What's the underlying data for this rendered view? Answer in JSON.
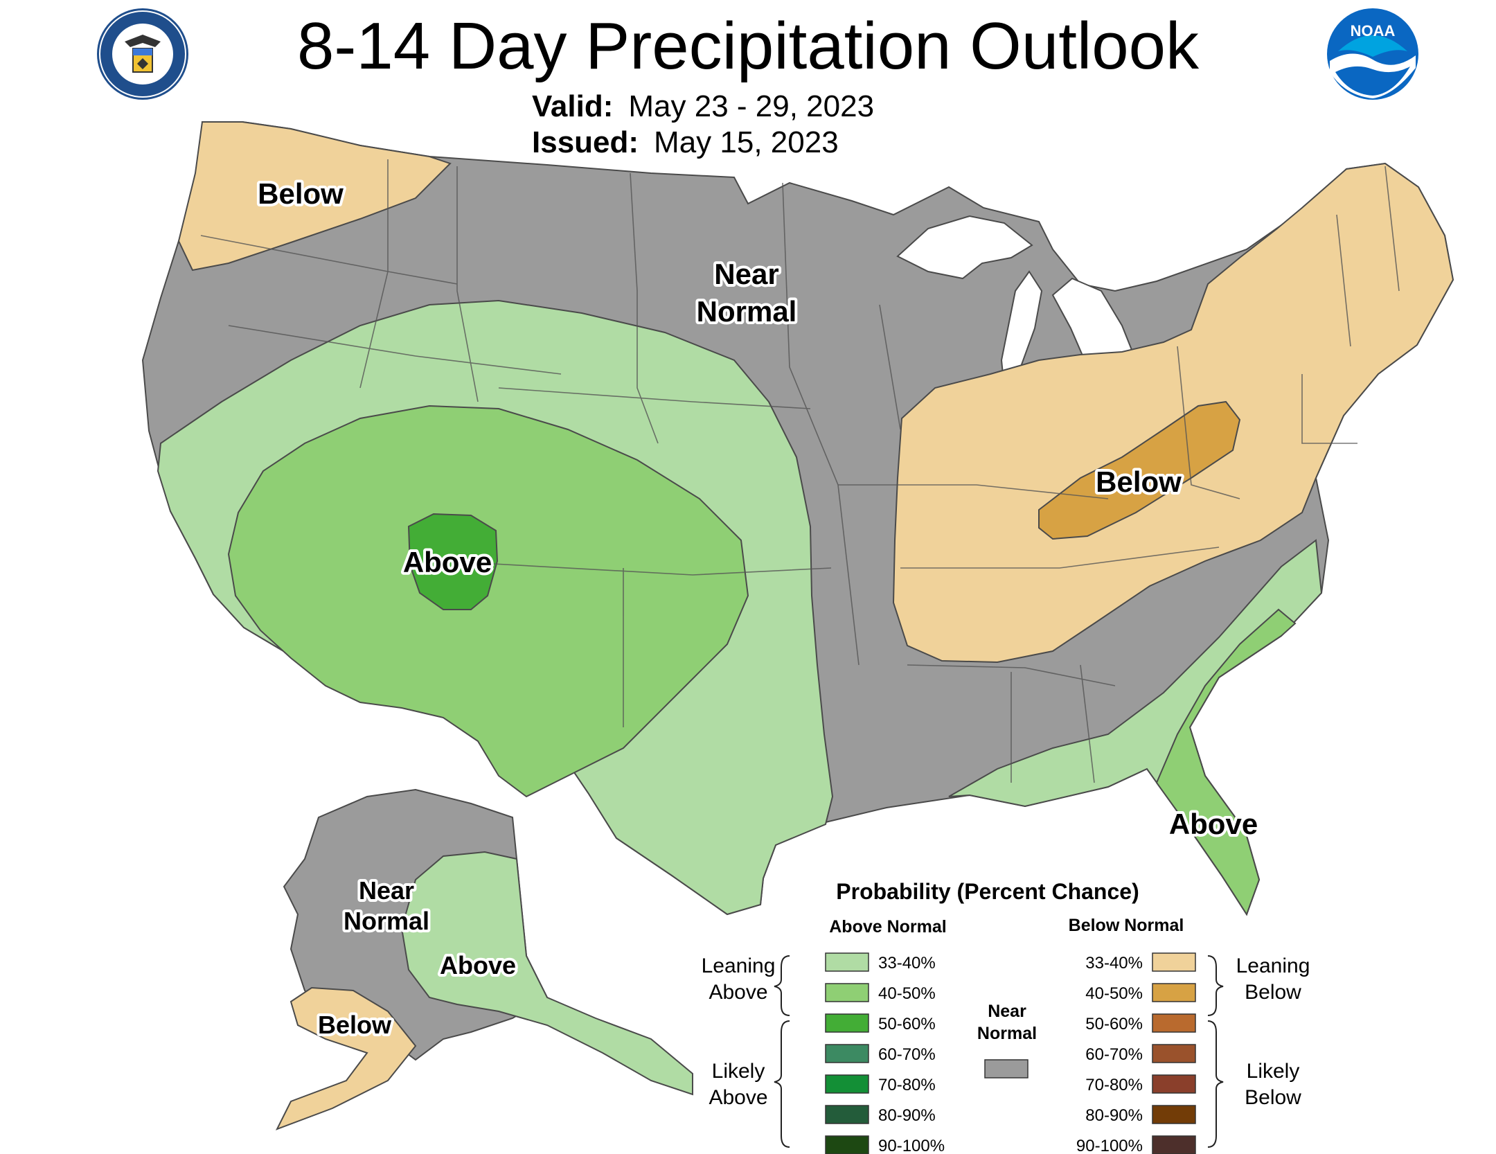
{
  "header": {
    "title": "8-14 Day Precipitation Outlook",
    "valid_label": "Valid:",
    "valid_value": "May 23 - 29, 2023",
    "issued_label": "Issued:",
    "issued_value": "May 15, 2023"
  },
  "logos": {
    "left": "department-of-commerce-seal",
    "right": "noaa-logo",
    "right_text": "NOAA"
  },
  "regions": {
    "pacific_nw": "Below",
    "north_central_line1": "Near",
    "north_central_line2": "Normal",
    "ohio_valley": "Below",
    "southwest": "Above",
    "florida": "Above",
    "alaska_nn_line1": "Near",
    "alaska_nn_line2": "Normal",
    "alaska_east": "Above",
    "alaska_sw": "Below"
  },
  "legend": {
    "title": "Probability (Percent Chance)",
    "above_header": "Above Normal",
    "below_header": "Below Normal",
    "near_label_line1": "Near",
    "near_label_line2": "Normal",
    "near_color": "#9b9b9b",
    "leaning_above_line1": "Leaning",
    "leaning_above_line2": "Above",
    "likely_above_line1": "Likely",
    "likely_above_line2": "Above",
    "leaning_below_line1": "Leaning",
    "leaning_below_line2": "Below",
    "likely_below_line1": "Likely",
    "likely_below_line2": "Below",
    "above": [
      {
        "label": "33-40%",
        "color": "#b0dca4"
      },
      {
        "label": "40-50%",
        "color": "#8fcf74"
      },
      {
        "label": "50-60%",
        "color": "#43ad36"
      },
      {
        "label": "60-70%",
        "color": "#3c8a62"
      },
      {
        "label": "70-80%",
        "color": "#138f36"
      },
      {
        "label": "80-90%",
        "color": "#235c3a"
      },
      {
        "label": "90-100%",
        "color": "#1d4812"
      }
    ],
    "below": [
      {
        "label": "33-40%",
        "color": "#f0d29a"
      },
      {
        "label": "40-50%",
        "color": "#d7a244"
      },
      {
        "label": "50-60%",
        "color": "#b96a2e"
      },
      {
        "label": "60-70%",
        "color": "#9a522c"
      },
      {
        "label": "70-80%",
        "color": "#8a3f2b"
      },
      {
        "label": "80-90%",
        "color": "#723c07"
      },
      {
        "label": "90-100%",
        "color": "#4d2f2b"
      }
    ]
  },
  "colors": {
    "near_normal": "#9b9b9b",
    "above_33_40": "#b0dca4",
    "above_40_50": "#8fcf74",
    "above_50_60": "#43ad36",
    "below_33_40": "#f0d29a",
    "below_40_50": "#d7a244",
    "border": "#4a4a4a"
  }
}
